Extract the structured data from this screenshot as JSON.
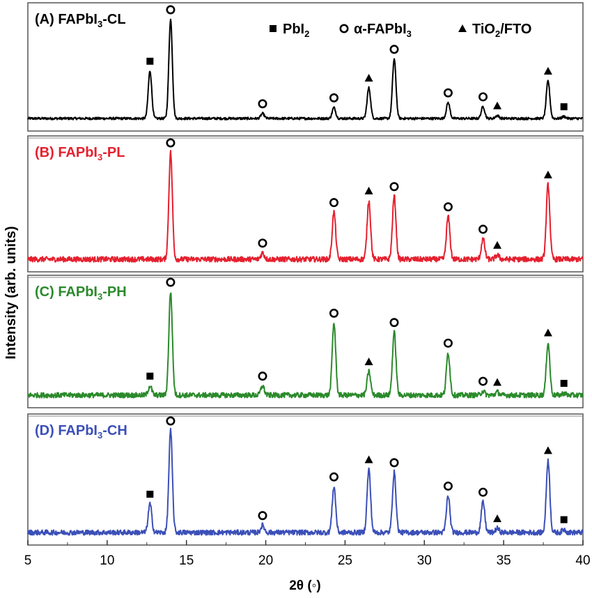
{
  "chart_data": {
    "type": "line",
    "xlabel": "2θ (◦)",
    "ylabel": "Intensity (arb. units)",
    "xlim": [
      5,
      40
    ],
    "xticks": [
      "5",
      "10",
      "15",
      "20",
      "25",
      "30",
      "35",
      "40"
    ],
    "legend": {
      "placement": "top-right of panel A",
      "entries": [
        {
          "marker": "square",
          "label_main": "PbI",
          "label_sub": "2",
          "label_tail": ""
        },
        {
          "marker": "circle",
          "label_main": "α-FAPbI",
          "label_sub": "3",
          "label_tail": ""
        },
        {
          "marker": "triangle",
          "label_main": "TiO",
          "label_sub": "2",
          "label_tail": "/FTO"
        }
      ]
    },
    "panels": [
      {
        "label_main": "(A) FAPbI",
        "label_sub": "3",
        "label_tail": "-CL",
        "color": "#000000",
        "noise": 0.012,
        "peaks": [
          {
            "x": 12.7,
            "h": 0.48,
            "marker": "square"
          },
          {
            "x": 14.0,
            "h": 1.0,
            "marker": "circle"
          },
          {
            "x": 19.8,
            "h": 0.05,
            "marker": "circle"
          },
          {
            "x": 24.3,
            "h": 0.11,
            "marker": "circle"
          },
          {
            "x": 26.5,
            "h": 0.31,
            "marker": "triangle"
          },
          {
            "x": 28.1,
            "h": 0.6,
            "marker": "circle"
          },
          {
            "x": 31.5,
            "h": 0.16,
            "marker": "circle"
          },
          {
            "x": 33.7,
            "h": 0.12,
            "marker": "circle"
          },
          {
            "x": 34.6,
            "h": 0.03,
            "marker": "triangle"
          },
          {
            "x": 37.8,
            "h": 0.38,
            "marker": "triangle"
          },
          {
            "x": 38.8,
            "h": 0.02,
            "marker": "square"
          }
        ]
      },
      {
        "label_main": "(B) FAPbI",
        "label_sub": "3",
        "label_tail": "-PL",
        "color": "#e5202e",
        "noise": 0.025,
        "peaks": [
          {
            "x": 14.0,
            "h": 1.0,
            "marker": "circle"
          },
          {
            "x": 19.8,
            "h": 0.06,
            "marker": "circle"
          },
          {
            "x": 24.3,
            "h": 0.44,
            "marker": "circle"
          },
          {
            "x": 26.5,
            "h": 0.55,
            "marker": "triangle"
          },
          {
            "x": 28.1,
            "h": 0.59,
            "marker": "circle"
          },
          {
            "x": 31.5,
            "h": 0.4,
            "marker": "circle"
          },
          {
            "x": 33.7,
            "h": 0.19,
            "marker": "circle"
          },
          {
            "x": 34.6,
            "h": 0.04,
            "marker": "triangle"
          },
          {
            "x": 37.8,
            "h": 0.7,
            "marker": "triangle"
          }
        ]
      },
      {
        "label_main": "(C) FAPbI",
        "label_sub": "3",
        "label_tail": "-PH",
        "color": "#2b8a2b",
        "noise": 0.025,
        "peaks": [
          {
            "x": 12.7,
            "h": 0.09,
            "marker": "square"
          },
          {
            "x": 14.0,
            "h": 1.0,
            "marker": "circle"
          },
          {
            "x": 19.8,
            "h": 0.09,
            "marker": "circle"
          },
          {
            "x": 24.3,
            "h": 0.7,
            "marker": "circle"
          },
          {
            "x": 26.5,
            "h": 0.23,
            "marker": "triangle"
          },
          {
            "x": 28.1,
            "h": 0.61,
            "marker": "circle"
          },
          {
            "x": 31.5,
            "h": 0.41,
            "marker": "circle"
          },
          {
            "x": 33.7,
            "h": 0.04,
            "marker": "circle"
          },
          {
            "x": 34.6,
            "h": 0.03,
            "marker": "triangle"
          },
          {
            "x": 37.8,
            "h": 0.51,
            "marker": "triangle"
          },
          {
            "x": 38.8,
            "h": 0.02,
            "marker": "square"
          }
        ]
      },
      {
        "label_main": "(D) FAPbI",
        "label_sub": "3",
        "label_tail": "-CH",
        "color": "#3b4fb8",
        "noise": 0.025,
        "peaks": [
          {
            "x": 12.7,
            "h": 0.28,
            "marker": "square"
          },
          {
            "x": 14.0,
            "h": 1.0,
            "marker": "circle"
          },
          {
            "x": 19.8,
            "h": 0.07,
            "marker": "circle"
          },
          {
            "x": 24.3,
            "h": 0.45,
            "marker": "circle"
          },
          {
            "x": 26.5,
            "h": 0.62,
            "marker": "triangle"
          },
          {
            "x": 28.1,
            "h": 0.59,
            "marker": "circle"
          },
          {
            "x": 31.5,
            "h": 0.36,
            "marker": "circle"
          },
          {
            "x": 33.7,
            "h": 0.3,
            "marker": "circle"
          },
          {
            "x": 34.6,
            "h": 0.04,
            "marker": "triangle"
          },
          {
            "x": 37.8,
            "h": 0.71,
            "marker": "triangle"
          },
          {
            "x": 38.8,
            "h": 0.03,
            "marker": "square"
          }
        ]
      }
    ]
  }
}
